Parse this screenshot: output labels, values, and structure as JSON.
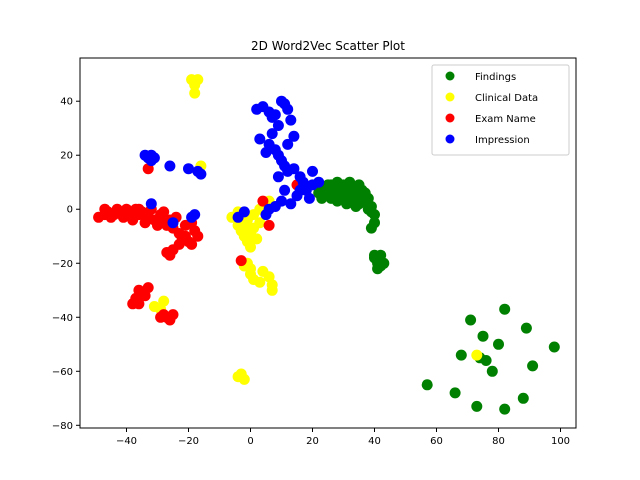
{
  "chart_data": {
    "type": "scatter",
    "title": "2D Word2Vec Scatter Plot",
    "xlabel": "",
    "ylabel": "",
    "xlim": [
      -55,
      105
    ],
    "ylim": [
      -81,
      56
    ],
    "xticks": [
      -40,
      -20,
      0,
      20,
      40,
      60,
      80,
      100
    ],
    "yticks": [
      -80,
      -60,
      -40,
      -20,
      0,
      20,
      40
    ],
    "grid": false,
    "legend_position": "top-right",
    "series": [
      {
        "name": "Findings",
        "color": "#008000",
        "points": [
          [
            22,
            6
          ],
          [
            24,
            8
          ],
          [
            25,
            5
          ],
          [
            26,
            9
          ],
          [
            27,
            7
          ],
          [
            28,
            10
          ],
          [
            29,
            6
          ],
          [
            30,
            9
          ],
          [
            31,
            7
          ],
          [
            32,
            4
          ],
          [
            33,
            8
          ],
          [
            34,
            6
          ],
          [
            35,
            9
          ],
          [
            36,
            5
          ],
          [
            37,
            3
          ],
          [
            38,
            0
          ],
          [
            39,
            1
          ],
          [
            40,
            -2
          ],
          [
            40,
            -5
          ],
          [
            39,
            -7
          ],
          [
            23,
            4
          ],
          [
            28,
            3
          ],
          [
            31,
            2
          ],
          [
            34,
            1
          ],
          [
            36,
            7
          ],
          [
            30,
            4
          ],
          [
            27,
            5
          ],
          [
            25,
            9
          ],
          [
            33,
            3
          ],
          [
            35,
            2
          ],
          [
            29,
            8
          ],
          [
            37,
            6
          ],
          [
            32,
            10
          ],
          [
            26,
            4
          ],
          [
            38,
            4
          ],
          [
            39,
            -1
          ],
          [
            21,
            9
          ],
          [
            24,
            5
          ],
          [
            40,
            -17
          ],
          [
            41,
            -19
          ],
          [
            42,
            -21
          ],
          [
            41,
            -22
          ],
          [
            43,
            -20
          ],
          [
            40,
            -18
          ],
          [
            42,
            -17
          ],
          [
            41,
            -20
          ],
          [
            82,
            -37
          ],
          [
            71,
            -41
          ],
          [
            89,
            -44
          ],
          [
            75,
            -47
          ],
          [
            80,
            -50
          ],
          [
            98,
            -51
          ],
          [
            68,
            -54
          ],
          [
            74,
            -55
          ],
          [
            78,
            -60
          ],
          [
            91,
            -58
          ],
          [
            57,
            -65
          ],
          [
            66,
            -68
          ],
          [
            88,
            -70
          ],
          [
            73,
            -73
          ],
          [
            82,
            -74
          ],
          [
            76,
            -56
          ]
        ]
      },
      {
        "name": "Clinical Data",
        "color": "#ffff00",
        "points": [
          [
            -19,
            48
          ],
          [
            -18,
            47
          ],
          [
            -17,
            48
          ],
          [
            -18,
            46
          ],
          [
            -18,
            43
          ],
          [
            -16,
            16
          ],
          [
            -6,
            -3
          ],
          [
            -4,
            -6
          ],
          [
            -3,
            -8
          ],
          [
            -2,
            -10
          ],
          [
            -1,
            -12
          ],
          [
            0,
            -9
          ],
          [
            1,
            -7
          ],
          [
            2,
            -11
          ],
          [
            3,
            -5
          ],
          [
            -1,
            -4
          ],
          [
            1,
            -2
          ],
          [
            3,
            0
          ],
          [
            5,
            -1
          ],
          [
            7,
            1
          ],
          [
            -2,
            -6
          ],
          [
            0,
            -14
          ],
          [
            -4,
            -1
          ],
          [
            6,
            3
          ],
          [
            -2,
            -21
          ],
          [
            -1,
            -20
          ],
          [
            0,
            -24
          ],
          [
            1,
            -26
          ],
          [
            3,
            -27
          ],
          [
            4,
            -23
          ],
          [
            6,
            -25
          ],
          [
            7,
            -28
          ],
          [
            7,
            -30
          ],
          [
            0,
            -22
          ],
          [
            -28,
            -34
          ],
          [
            -31,
            -36
          ],
          [
            -29,
            -37
          ],
          [
            -4,
            -62
          ],
          [
            -3,
            -61
          ],
          [
            -2,
            -63
          ],
          [
            73,
            -54
          ]
        ]
      },
      {
        "name": "Exam Name",
        "color": "#ff0000",
        "points": [
          [
            -49,
            -3
          ],
          [
            -47,
            0
          ],
          [
            -46,
            -1
          ],
          [
            -44,
            -2
          ],
          [
            -43,
            0
          ],
          [
            -42,
            -1
          ],
          [
            -40,
            -2
          ],
          [
            -39,
            -1
          ],
          [
            -37,
            0
          ],
          [
            -36,
            -2
          ],
          [
            -35,
            -1
          ],
          [
            -33,
            -3
          ],
          [
            -31,
            -4
          ],
          [
            -29,
            -2
          ],
          [
            -28,
            -5
          ],
          [
            -27,
            -6
          ],
          [
            -26,
            -4
          ],
          [
            -25,
            -7
          ],
          [
            -23,
            -9
          ],
          [
            -22,
            -11
          ],
          [
            -21,
            -10
          ],
          [
            -20,
            -12
          ],
          [
            -19,
            -13
          ],
          [
            -18,
            -8
          ],
          [
            -17,
            -10
          ],
          [
            -25,
            -15
          ],
          [
            -45,
            -3
          ],
          [
            -41,
            -3
          ],
          [
            -38,
            -4
          ],
          [
            -34,
            -5
          ],
          [
            -30,
            -6
          ],
          [
            -32,
            0
          ],
          [
            -28,
            -1
          ],
          [
            -24,
            -3
          ],
          [
            -21,
            -6
          ],
          [
            -19,
            -5
          ],
          [
            -23,
            -13
          ],
          [
            -26,
            -17
          ],
          [
            -27,
            -16
          ],
          [
            -47,
            -2
          ],
          [
            -40,
            0
          ],
          [
            -36,
            0
          ],
          [
            -33,
            15
          ],
          [
            -36,
            -30
          ],
          [
            -35,
            -31
          ],
          [
            -34,
            -32
          ],
          [
            -33,
            -29
          ],
          [
            -37,
            -33
          ],
          [
            -38,
            -35
          ],
          [
            -36,
            -35
          ],
          [
            -28,
            -39
          ],
          [
            -27,
            -40
          ],
          [
            -26,
            -41
          ],
          [
            -29,
            -40
          ],
          [
            -25,
            -39
          ],
          [
            -3,
            -19
          ],
          [
            4,
            3
          ],
          [
            6,
            -6
          ],
          [
            15,
            9
          ]
        ]
      },
      {
        "name": "Impression",
        "color": "#0000ff",
        "points": [
          [
            -33,
            19
          ],
          [
            -32,
            20
          ],
          [
            -31,
            19
          ],
          [
            -34,
            20
          ],
          [
            -32,
            18
          ],
          [
            -26,
            16
          ],
          [
            -20,
            15
          ],
          [
            -17,
            14
          ],
          [
            -16,
            13
          ],
          [
            -32,
            2
          ],
          [
            -19,
            -3
          ],
          [
            -18,
            -2
          ],
          [
            -25,
            -5
          ],
          [
            -2,
            -1
          ],
          [
            -4,
            -3
          ],
          [
            2,
            37
          ],
          [
            4,
            38
          ],
          [
            6,
            36
          ],
          [
            7,
            34
          ],
          [
            8,
            35
          ],
          [
            10,
            40
          ],
          [
            11,
            39
          ],
          [
            12,
            37
          ],
          [
            13,
            33
          ],
          [
            9,
            31
          ],
          [
            7,
            28
          ],
          [
            3,
            26
          ],
          [
            6,
            24
          ],
          [
            8,
            22
          ],
          [
            9,
            20
          ],
          [
            10,
            18
          ],
          [
            11,
            16
          ],
          [
            12,
            14
          ],
          [
            14,
            15
          ],
          [
            16,
            12
          ],
          [
            17,
            10
          ],
          [
            18,
            7
          ],
          [
            20,
            9
          ],
          [
            22,
            10
          ],
          [
            19,
            4
          ],
          [
            13,
            2
          ],
          [
            15,
            5
          ],
          [
            10,
            3
          ],
          [
            8,
            1
          ],
          [
            6,
            0
          ],
          [
            5,
            -2
          ],
          [
            12,
            24
          ],
          [
            14,
            27
          ],
          [
            5,
            21
          ],
          [
            9,
            12
          ],
          [
            16,
            7
          ],
          [
            11,
            7
          ],
          [
            20,
            14
          ]
        ]
      }
    ]
  }
}
